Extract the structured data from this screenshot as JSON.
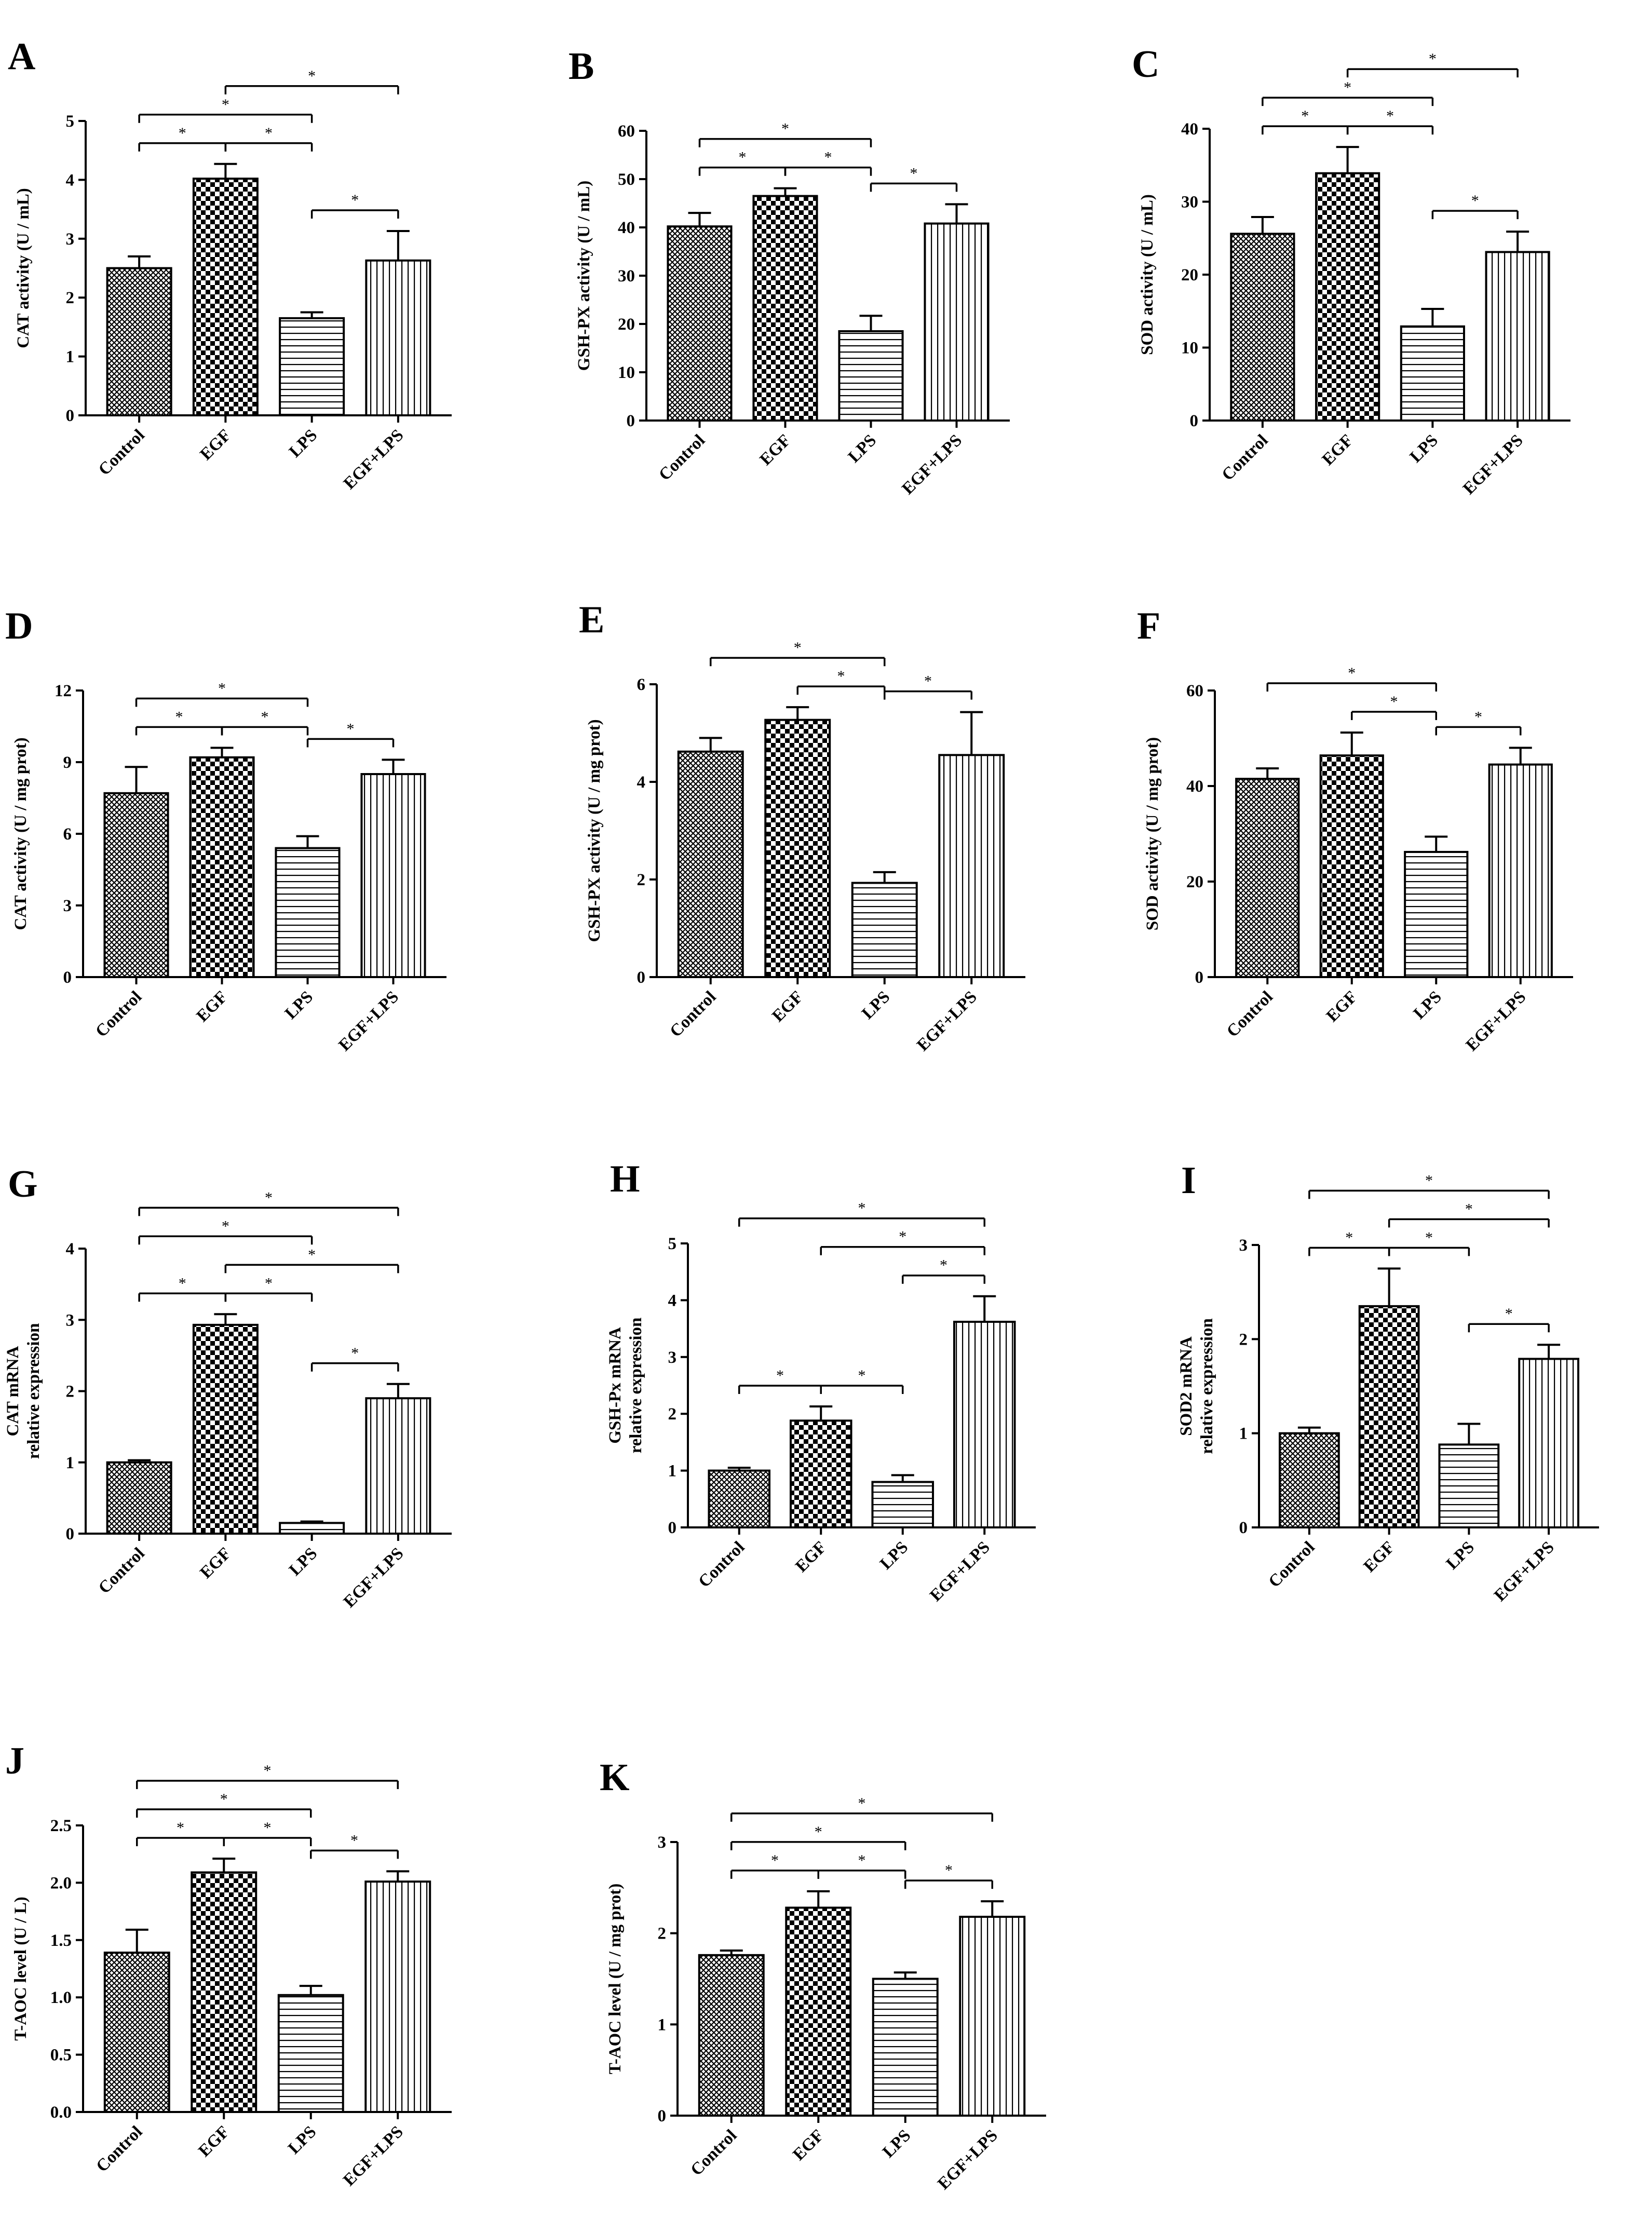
{
  "figure": {
    "categories": [
      "Control",
      "EGF",
      "LPS",
      "EGF+LPS"
    ],
    "significance_symbol": "*"
  },
  "chart_data": [
    {
      "type": "bar",
      "panel": "A",
      "ylabel": [
        "CAT activity (U / mL)"
      ],
      "ylim": [
        0,
        5
      ],
      "yticks": [
        0,
        1,
        2,
        3,
        4,
        5
      ],
      "tick_labels": [
        "0",
        "1",
        "2",
        "3",
        "4",
        "5"
      ],
      "categories": [
        "Control",
        "EGF",
        "LPS",
        "EGF+LPS"
      ],
      "values": [
        2.5,
        4.02,
        1.65,
        2.63
      ],
      "errors": [
        0.2,
        0.25,
        0.1,
        0.5
      ],
      "comparisons": [
        [
          0,
          2
        ],
        [
          1,
          3
        ],
        [
          0,
          1
        ],
        [
          1,
          2
        ],
        [
          2,
          3
        ]
      ]
    },
    {
      "type": "bar",
      "panel": "B",
      "ylabel": [
        "GSH-PX activity (U / mL)"
      ],
      "ylim": [
        0,
        60
      ],
      "yticks": [
        0,
        10,
        20,
        30,
        40,
        50,
        60
      ],
      "tick_labels": [
        "0",
        "10",
        "20",
        "30",
        "40",
        "50",
        "60"
      ],
      "categories": [
        "Control",
        "EGF",
        "LPS",
        "EGF+LPS"
      ],
      "values": [
        40.2,
        46.5,
        18.5,
        40.8
      ],
      "errors": [
        2.8,
        1.6,
        3.2,
        4.0
      ],
      "comparisons": [
        [
          0,
          2
        ],
        [
          0,
          1
        ],
        [
          1,
          2
        ],
        [
          2,
          3
        ]
      ]
    },
    {
      "type": "bar",
      "panel": "C",
      "ylabel": [
        "SOD activity (U / mL)"
      ],
      "ylim": [
        0,
        40
      ],
      "yticks": [
        0,
        10,
        20,
        30,
        40
      ],
      "tick_labels": [
        "0",
        "10",
        "20",
        "30",
        "40"
      ],
      "categories": [
        "Control",
        "EGF",
        "LPS",
        "EGF+LPS"
      ],
      "values": [
        25.6,
        33.9,
        12.9,
        23.1
      ],
      "errors": [
        2.3,
        3.6,
        2.4,
        2.8
      ],
      "comparisons": [
        [
          0,
          2
        ],
        [
          1,
          3
        ],
        [
          0,
          1
        ],
        [
          1,
          2
        ],
        [
          2,
          3
        ]
      ]
    },
    {
      "type": "bar",
      "panel": "D",
      "ylabel": [
        "CAT activity (U / mg prot)"
      ],
      "ylim": [
        0,
        12
      ],
      "yticks": [
        0,
        3,
        6,
        9,
        12
      ],
      "tick_labels": [
        "0",
        "3",
        "6",
        "9",
        "12"
      ],
      "categories": [
        "Control",
        "EGF",
        "LPS",
        "EGF+LPS"
      ],
      "values": [
        7.7,
        9.2,
        5.4,
        8.5
      ],
      "errors": [
        1.1,
        0.4,
        0.5,
        0.6
      ],
      "comparisons": [
        [
          0,
          2
        ],
        [
          0,
          1
        ],
        [
          1,
          2
        ],
        [
          2,
          3
        ]
      ]
    },
    {
      "type": "bar",
      "panel": "E",
      "ylabel": [
        "GSH-PX activity (U / mg prot)"
      ],
      "ylim": [
        0,
        6
      ],
      "yticks": [
        0,
        2,
        4,
        6
      ],
      "tick_labels": [
        "0",
        "2",
        "4",
        "6"
      ],
      "categories": [
        "Control",
        "EGF",
        "LPS",
        "EGF+LPS"
      ],
      "values": [
        4.62,
        5.27,
        1.93,
        4.55
      ],
      "errors": [
        0.28,
        0.26,
        0.22,
        0.88
      ],
      "comparisons": [
        [
          0,
          2
        ],
        [
          1,
          2
        ],
        [
          2,
          3
        ]
      ]
    },
    {
      "type": "bar",
      "panel": "F",
      "ylabel": [
        "SOD activity (U / mg prot)"
      ],
      "ylim": [
        0,
        60
      ],
      "yticks": [
        0,
        20,
        40,
        60
      ],
      "tick_labels": [
        "0",
        "20",
        "40",
        "60"
      ],
      "categories": [
        "Control",
        "EGF",
        "LPS",
        "EGF+LPS"
      ],
      "values": [
        41.5,
        46.4,
        26.2,
        44.5
      ],
      "errors": [
        2.2,
        4.8,
        3.2,
        3.5
      ],
      "comparisons": [
        [
          0,
          2
        ],
        [
          1,
          2
        ],
        [
          2,
          3
        ]
      ]
    },
    {
      "type": "bar",
      "panel": "G",
      "ylabel": [
        "CAT mRNA",
        "relative expression"
      ],
      "ylim": [
        0,
        4
      ],
      "yticks": [
        0,
        1,
        2,
        3,
        4
      ],
      "tick_labels": [
        "0",
        "1",
        "2",
        "3",
        "4"
      ],
      "categories": [
        "Control",
        "EGF",
        "LPS",
        "EGF+LPS"
      ],
      "values": [
        1.0,
        2.93,
        0.15,
        1.9
      ],
      "errors": [
        0.03,
        0.15,
        0.02,
        0.2
      ],
      "comparisons": [
        [
          0,
          3
        ],
        [
          1,
          3
        ],
        [
          0,
          2
        ],
        [
          0,
          1
        ],
        [
          1,
          2
        ],
        [
          2,
          3
        ]
      ]
    },
    {
      "type": "bar",
      "panel": "H",
      "ylabel": [
        "GSH-Px mRNA",
        "relative expression"
      ],
      "ylim": [
        0,
        5
      ],
      "yticks": [
        0,
        1,
        2,
        3,
        4,
        5
      ],
      "tick_labels": [
        "0",
        "1",
        "2",
        "3",
        "4",
        "5"
      ],
      "categories": [
        "Control",
        "EGF",
        "LPS",
        "EGF+LPS"
      ],
      "values": [
        1.0,
        1.88,
        0.8,
        3.62
      ],
      "errors": [
        0.05,
        0.25,
        0.12,
        0.45
      ],
      "comparisons": [
        [
          0,
          3
        ],
        [
          1,
          3
        ],
        [
          2,
          3
        ],
        [
          0,
          1
        ],
        [
          1,
          2
        ]
      ]
    },
    {
      "type": "bar",
      "panel": "I",
      "ylabel": [
        "SOD2 mRNA",
        "relative expression"
      ],
      "ylim": [
        0,
        3
      ],
      "yticks": [
        0,
        1,
        2,
        3
      ],
      "tick_labels": [
        "0",
        "1",
        "2",
        "3"
      ],
      "categories": [
        "Control",
        "EGF",
        "LPS",
        "EGF+LPS"
      ],
      "values": [
        1.0,
        2.35,
        0.88,
        1.79
      ],
      "errors": [
        0.06,
        0.4,
        0.22,
        0.15
      ],
      "comparisons": [
        [
          0,
          3
        ],
        [
          1,
          3
        ],
        [
          0,
          1
        ],
        [
          1,
          2
        ],
        [
          2,
          3
        ]
      ]
    },
    {
      "type": "bar",
      "panel": "J",
      "ylabel": [
        "T-AOC level (U / L)"
      ],
      "ylim": [
        0,
        2.5
      ],
      "yticks": [
        0,
        0.5,
        1,
        1.5,
        2,
        2.5
      ],
      "tick_labels": [
        "0.0",
        "0.5",
        "1.0",
        "1.5",
        "2.0",
        "2.5"
      ],
      "categories": [
        "Control",
        "EGF",
        "LPS",
        "EGF+LPS"
      ],
      "values": [
        1.39,
        2.09,
        1.02,
        2.01
      ],
      "errors": [
        0.2,
        0.12,
        0.08,
        0.09
      ],
      "comparisons": [
        [
          0,
          3
        ],
        [
          0,
          2
        ],
        [
          0,
          1
        ],
        [
          1,
          2
        ],
        [
          2,
          3
        ]
      ]
    },
    {
      "type": "bar",
      "panel": "K",
      "ylabel": [
        "T-AOC level (U / mg prot)"
      ],
      "ylim": [
        0,
        3
      ],
      "yticks": [
        0,
        1,
        2,
        3
      ],
      "tick_labels": [
        "0",
        "1",
        "2",
        "3"
      ],
      "categories": [
        "Control",
        "EGF",
        "LPS",
        "EGF+LPS"
      ],
      "values": [
        1.76,
        2.28,
        1.5,
        2.18
      ],
      "errors": [
        0.05,
        0.18,
        0.07,
        0.17
      ],
      "comparisons": [
        [
          0,
          3
        ],
        [
          0,
          2
        ],
        [
          0,
          1
        ],
        [
          1,
          2
        ],
        [
          2,
          3
        ]
      ]
    }
  ]
}
